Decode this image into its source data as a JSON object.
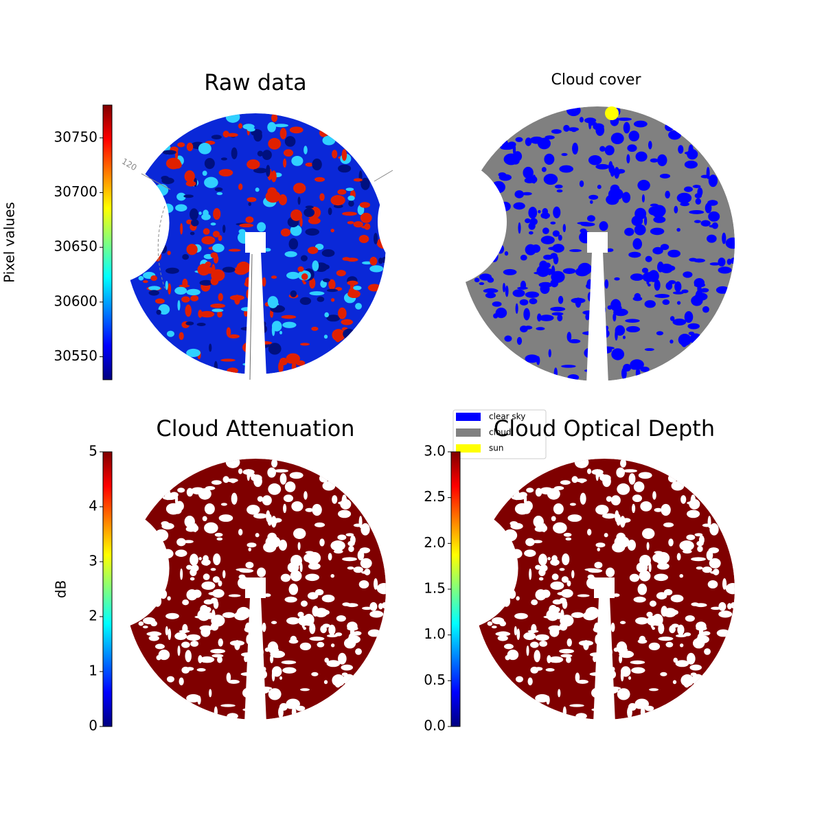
{
  "chart_data": [
    {
      "type": "image",
      "title": "Raw data",
      "annotation": "120",
      "colorbar": {
        "label": "Pixel values",
        "lim": [
          30529,
          30780
        ],
        "ticks": [
          30550,
          30600,
          30650,
          30700,
          30750
        ],
        "colormap": "jet"
      }
    },
    {
      "type": "image",
      "title": "Cloud cover",
      "series": [
        {
          "name": "clear sky",
          "color": "#0000ff"
        },
        {
          "name": "cloud",
          "color": "#808080"
        },
        {
          "name": "sun",
          "color": "#ffff00"
        }
      ]
    },
    {
      "type": "image",
      "title": "Cloud Attenuation",
      "colorbar": {
        "label": "dB",
        "lim": [
          0,
          5
        ],
        "ticks": [
          0,
          1,
          2,
          3,
          4,
          5
        ],
        "colormap": "jet"
      }
    },
    {
      "type": "image",
      "title": "Cloud Optical Depth",
      "colorbar": {
        "lim": [
          0,
          3
        ],
        "ticks": [
          {
            "value": 0,
            "label": "0.0"
          },
          {
            "value": 0.5,
            "label": "0.5"
          },
          {
            "value": 1,
            "label": "1.0"
          },
          {
            "value": 1.5,
            "label": "1.5"
          },
          {
            "value": 2,
            "label": "2.0"
          },
          {
            "value": 2.5,
            "label": "2.5"
          },
          {
            "value": 3,
            "label": "3.0"
          }
        ],
        "colormap": "jet"
      }
    }
  ]
}
